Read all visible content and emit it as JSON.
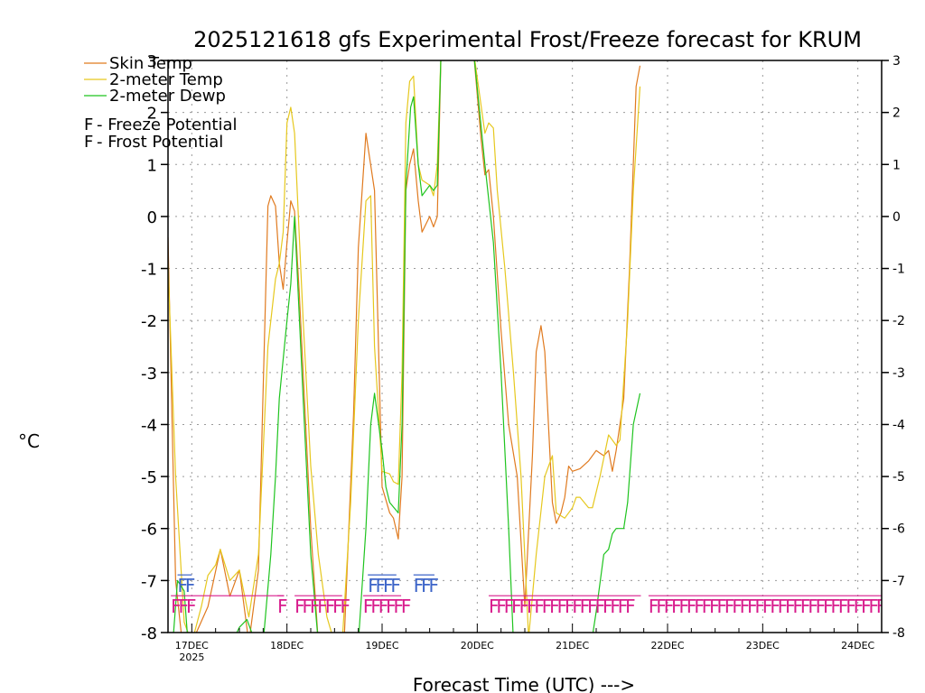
{
  "colors": {
    "skin": "#e07a1f",
    "temp": "#e6c81e",
    "dewp": "#1fc41f",
    "freeze": "#d81b8c",
    "frost": "#3c64c8",
    "grid": "#9a9a9a"
  },
  "chart_data": {
    "type": "line",
    "title": "2025121618 gfs Experimental Frost/Freeze forecast for KRUM",
    "xlabel": "Forecast Time (UTC) --->",
    "ylabel": "°C",
    "ylim": [
      -8,
      3
    ],
    "xlim": [
      16.75,
      24.25
    ],
    "yticks": [
      -8,
      -7,
      -6,
      -5,
      -4,
      -3,
      -2,
      -1,
      0,
      1,
      2,
      3
    ],
    "xticks": [
      {
        "x": 17,
        "label": "17DEC",
        "sub": "2025"
      },
      {
        "x": 18,
        "label": "18DEC",
        "sub": ""
      },
      {
        "x": 19,
        "label": "19DEC",
        "sub": ""
      },
      {
        "x": 20,
        "label": "20DEC",
        "sub": ""
      },
      {
        "x": 21,
        "label": "21DEC",
        "sub": ""
      },
      {
        "x": 22,
        "label": "22DEC",
        "sub": ""
      },
      {
        "x": 23,
        "label": "23DEC",
        "sub": ""
      },
      {
        "x": 24,
        "label": "24DEC",
        "sub": ""
      }
    ],
    "grid": true,
    "legend": [
      {
        "label": "Skin Temp",
        "key": "skin"
      },
      {
        "label": "2-meter Temp",
        "key": "temp"
      },
      {
        "label": "2-meter Dewp",
        "key": "dewp"
      }
    ],
    "flag_legend": [
      {
        "char": "F",
        "label": " - Freeze Potential",
        "key": "freeze"
      },
      {
        "char": "F",
        "label": " - Frost Potential",
        "key": "frost"
      }
    ],
    "series": [
      {
        "name": "Skin Temp",
        "key": "skin",
        "points": [
          [
            16.75,
            -0.4
          ],
          [
            16.83,
            -7.0
          ],
          [
            16.9,
            -8.2
          ],
          [
            17.0,
            -8.2
          ],
          [
            17.17,
            -7.5
          ],
          [
            17.3,
            -6.4
          ],
          [
            17.4,
            -7.3
          ],
          [
            17.5,
            -6.8
          ],
          [
            17.6,
            -8.2
          ],
          [
            17.7,
            -6.8
          ],
          [
            17.8,
            0.2
          ],
          [
            17.83,
            0.4
          ],
          [
            17.88,
            0.2
          ],
          [
            17.92,
            -0.9
          ],
          [
            17.96,
            -1.4
          ],
          [
            18.0,
            -0.5
          ],
          [
            18.04,
            0.3
          ],
          [
            18.08,
            0.1
          ],
          [
            18.13,
            -1.5
          ],
          [
            18.25,
            -6.0
          ],
          [
            18.33,
            -8.2
          ],
          [
            18.6,
            -8.2
          ],
          [
            18.7,
            -3.8
          ],
          [
            18.75,
            -0.6
          ],
          [
            18.83,
            1.6
          ],
          [
            18.92,
            0.5
          ],
          [
            19.0,
            -5.2
          ],
          [
            19.08,
            -5.7
          ],
          [
            19.12,
            -5.8
          ],
          [
            19.17,
            -6.2
          ],
          [
            19.21,
            -5.0
          ],
          [
            19.25,
            0.5
          ],
          [
            19.29,
            1.0
          ],
          [
            19.33,
            1.3
          ],
          [
            19.38,
            0.3
          ],
          [
            19.42,
            -0.3
          ],
          [
            19.5,
            0.0
          ],
          [
            19.54,
            -0.2
          ],
          [
            19.58,
            0.0
          ],
          [
            19.62,
            3.2
          ],
          [
            19.96,
            3.2
          ],
          [
            20.04,
            1.5
          ],
          [
            20.08,
            0.8
          ],
          [
            20.12,
            0.9
          ],
          [
            20.17,
            0.0
          ],
          [
            20.25,
            -2.2
          ],
          [
            20.33,
            -4.0
          ],
          [
            20.42,
            -5.0
          ],
          [
            20.5,
            -7.5
          ],
          [
            20.58,
            -4.6
          ],
          [
            20.62,
            -2.6
          ],
          [
            20.67,
            -2.1
          ],
          [
            20.71,
            -2.6
          ],
          [
            20.79,
            -5.5
          ],
          [
            20.83,
            -5.9
          ],
          [
            20.88,
            -5.7
          ],
          [
            20.92,
            -5.4
          ],
          [
            20.96,
            -4.8
          ],
          [
            21.0,
            -4.9
          ],
          [
            21.08,
            -4.85
          ],
          [
            21.17,
            -4.7
          ],
          [
            21.25,
            -4.5
          ],
          [
            21.29,
            -4.55
          ],
          [
            21.33,
            -4.6
          ],
          [
            21.38,
            -4.5
          ],
          [
            21.42,
            -4.9
          ],
          [
            21.46,
            -4.5
          ],
          [
            21.54,
            -3.5
          ],
          [
            21.6,
            -1.0
          ],
          [
            21.67,
            2.5
          ],
          [
            21.71,
            2.9
          ]
        ]
      },
      {
        "name": "2-meter Temp",
        "key": "temp",
        "points": [
          [
            16.75,
            -0.9
          ],
          [
            16.83,
            -5.0
          ],
          [
            16.92,
            -7.8
          ],
          [
            17.0,
            -8.2
          ],
          [
            17.1,
            -7.5
          ],
          [
            17.17,
            -6.9
          ],
          [
            17.25,
            -6.7
          ],
          [
            17.3,
            -6.4
          ],
          [
            17.4,
            -7.0
          ],
          [
            17.5,
            -6.8
          ],
          [
            17.6,
            -7.7
          ],
          [
            17.7,
            -6.5
          ],
          [
            17.8,
            -2.5
          ],
          [
            17.88,
            -1.2
          ],
          [
            17.92,
            -0.9
          ],
          [
            17.96,
            -0.3
          ],
          [
            18.0,
            1.8
          ],
          [
            18.04,
            2.1
          ],
          [
            18.08,
            1.6
          ],
          [
            18.17,
            -2.0
          ],
          [
            18.25,
            -4.8
          ],
          [
            18.33,
            -6.5
          ],
          [
            18.42,
            -7.7
          ],
          [
            18.5,
            -8.2
          ],
          [
            18.58,
            -8.2
          ],
          [
            18.67,
            -5.5
          ],
          [
            18.75,
            -2.0
          ],
          [
            18.83,
            0.3
          ],
          [
            18.88,
            0.4
          ],
          [
            18.92,
            -2.5
          ],
          [
            19.0,
            -4.9
          ],
          [
            19.08,
            -4.95
          ],
          [
            19.12,
            -5.1
          ],
          [
            19.17,
            -5.15
          ],
          [
            19.21,
            -3.0
          ],
          [
            19.25,
            1.8
          ],
          [
            19.29,
            2.6
          ],
          [
            19.33,
            2.7
          ],
          [
            19.38,
            1.0
          ],
          [
            19.42,
            0.7
          ],
          [
            19.5,
            0.6
          ],
          [
            19.54,
            0.4
          ],
          [
            19.58,
            1.0
          ],
          [
            19.62,
            3.2
          ],
          [
            19.96,
            3.2
          ],
          [
            20.08,
            1.6
          ],
          [
            20.12,
            1.8
          ],
          [
            20.17,
            1.7
          ],
          [
            20.21,
            0.5
          ],
          [
            20.29,
            -1.0
          ],
          [
            20.38,
            -3.0
          ],
          [
            20.46,
            -5.0
          ],
          [
            20.54,
            -8.1
          ],
          [
            20.62,
            -6.5
          ],
          [
            20.71,
            -5.0
          ],
          [
            20.79,
            -4.6
          ],
          [
            20.83,
            -5.7
          ],
          [
            20.92,
            -5.8
          ],
          [
            21.0,
            -5.6
          ],
          [
            21.04,
            -5.4
          ],
          [
            21.08,
            -5.4
          ],
          [
            21.17,
            -5.6
          ],
          [
            21.21,
            -5.6
          ],
          [
            21.29,
            -5.0
          ],
          [
            21.38,
            -4.2
          ],
          [
            21.42,
            -4.3
          ],
          [
            21.46,
            -4.4
          ],
          [
            21.5,
            -4.3
          ],
          [
            21.58,
            -2.0
          ],
          [
            21.64,
            0.5
          ],
          [
            21.71,
            2.5
          ]
        ]
      },
      {
        "name": "2-meter Dewp",
        "key": "dewp",
        "points": [
          [
            16.8,
            -8.2
          ],
          [
            16.85,
            -7.0
          ],
          [
            16.92,
            -7.2
          ],
          [
            16.96,
            -8.2
          ],
          [
            17.42,
            -8.2
          ],
          [
            17.5,
            -7.9
          ],
          [
            17.58,
            -7.75
          ],
          [
            17.65,
            -8.1
          ],
          [
            17.75,
            -8.2
          ],
          [
            17.83,
            -6.5
          ],
          [
            17.88,
            -5.0
          ],
          [
            17.92,
            -3.5
          ],
          [
            18.0,
            -2.0
          ],
          [
            18.04,
            -1.3
          ],
          [
            18.08,
            0.0
          ],
          [
            18.17,
            -3.5
          ],
          [
            18.25,
            -6.5
          ],
          [
            18.33,
            -8.2
          ],
          [
            18.75,
            -8.2
          ],
          [
            18.83,
            -6.0
          ],
          [
            18.88,
            -4.0
          ],
          [
            18.92,
            -3.4
          ],
          [
            19.0,
            -4.5
          ],
          [
            19.04,
            -5.2
          ],
          [
            19.08,
            -5.5
          ],
          [
            19.17,
            -5.7
          ],
          [
            19.21,
            -4.0
          ],
          [
            19.25,
            0.6
          ],
          [
            19.3,
            2.1
          ],
          [
            19.33,
            2.3
          ],
          [
            19.38,
            1.0
          ],
          [
            19.42,
            0.4
          ],
          [
            19.5,
            0.6
          ],
          [
            19.54,
            0.5
          ],
          [
            19.58,
            0.6
          ],
          [
            19.62,
            3.2
          ],
          [
            19.96,
            3.2
          ],
          [
            20.08,
            1.0
          ],
          [
            20.17,
            -0.5
          ],
          [
            20.25,
            -3.0
          ],
          [
            20.33,
            -6.0
          ],
          [
            20.38,
            -8.2
          ],
          [
            21.2,
            -8.2
          ],
          [
            21.25,
            -7.6
          ],
          [
            21.33,
            -6.5
          ],
          [
            21.38,
            -6.4
          ],
          [
            21.42,
            -6.1
          ],
          [
            21.46,
            -6.0
          ],
          [
            21.5,
            -6.0
          ],
          [
            21.54,
            -6.0
          ],
          [
            21.58,
            -5.5
          ],
          [
            21.64,
            -4.0
          ],
          [
            21.71,
            -3.4
          ]
        ]
      }
    ],
    "flags": [
      {
        "key": "freeze",
        "y": -7.5,
        "runs": [
          [
            16.78,
            17.0,
            17.97
          ],
          [
            17.9,
            17.95,
            17.97
          ],
          [
            18.08,
            18.58,
            18.58
          ],
          [
            18.8,
            19.2,
            19.2
          ],
          [
            20.12,
            21.6,
            21.72
          ],
          [
            21.8,
            24.3,
            24.3
          ]
        ]
      },
      {
        "key": "frost",
        "y": -7.1,
        "runs": [
          [
            16.85,
            17.0,
            17.0
          ],
          [
            18.85,
            19.15,
            19.15
          ],
          [
            19.33,
            19.55,
            19.55
          ]
        ]
      }
    ],
    "flag_char": "F"
  }
}
